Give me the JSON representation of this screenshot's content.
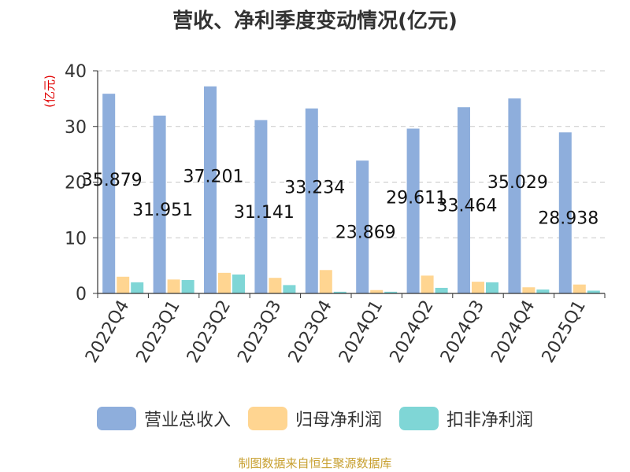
{
  "chart_data": {
    "type": "bar",
    "title": "营收、净利季度变动情况(亿元)",
    "ylabel": "(亿元)",
    "xlabel": "",
    "categories": [
      "2022Q4",
      "2023Q1",
      "2023Q2",
      "2023Q3",
      "2023Q4",
      "2024Q1",
      "2024Q2",
      "2024Q3",
      "2024Q4",
      "2025Q1"
    ],
    "ylim": [
      0,
      40
    ],
    "yticks": [
      0,
      10,
      20,
      30,
      40
    ],
    "grid": true,
    "legend_position": "bottom",
    "series": [
      {
        "name": "营业总收入",
        "color": "#8eaedc",
        "values": [
          35.879,
          31.951,
          37.201,
          31.141,
          33.234,
          23.869,
          29.611,
          33.464,
          35.029,
          28.938
        ],
        "labels": [
          "35.879",
          "31.951",
          "37.201",
          "31.141",
          "33.234",
          "23.869",
          "29.611",
          "33.464",
          "35.029",
          "28.938"
        ]
      },
      {
        "name": "归母净利润",
        "color": "#ffd591",
        "values": [
          3.0,
          2.5,
          3.7,
          2.8,
          4.2,
          0.6,
          3.2,
          2.1,
          1.1,
          1.6
        ]
      },
      {
        "name": "扣非净利润",
        "color": "#7fd6d6",
        "values": [
          2.0,
          2.4,
          3.4,
          1.5,
          0.3,
          0.3,
          1.0,
          2.0,
          0.7,
          0.5
        ]
      }
    ]
  },
  "source_note": "制图数据来自恒生聚源数据库"
}
